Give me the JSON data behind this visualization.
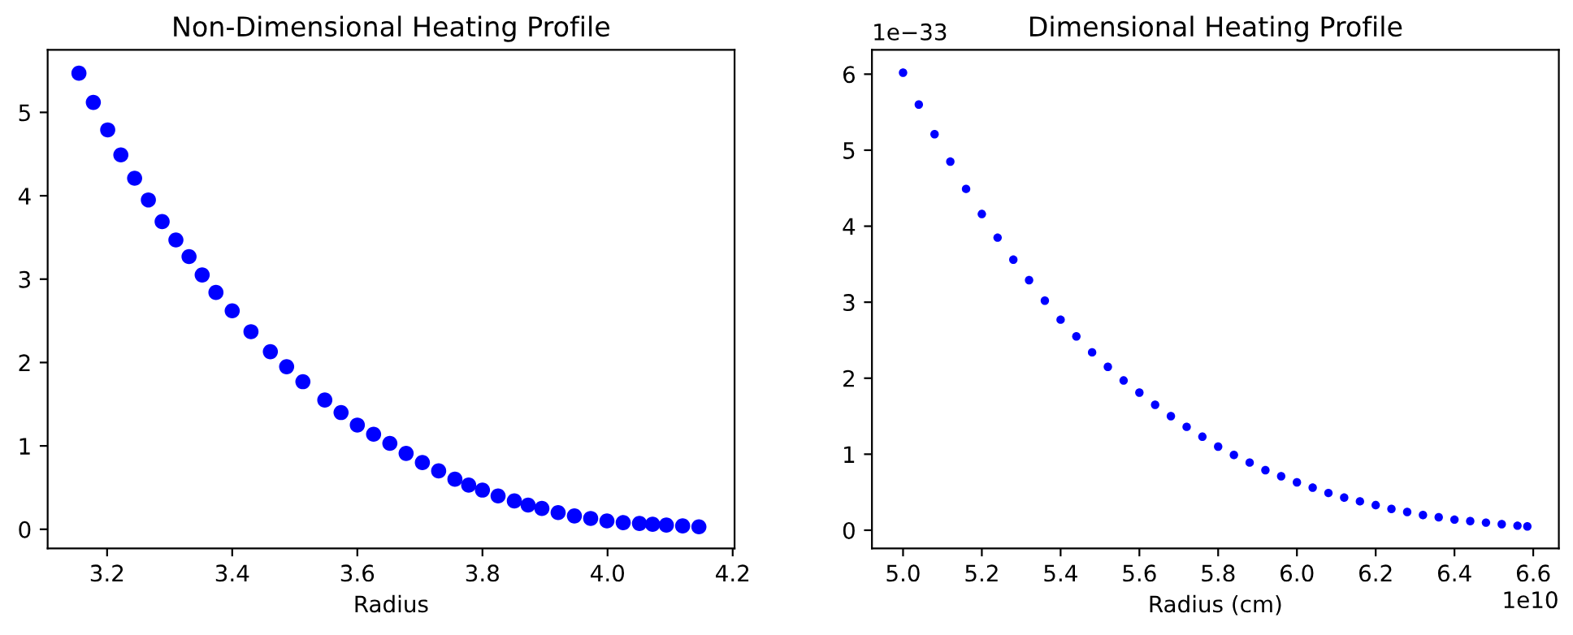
{
  "chart_data": [
    {
      "type": "scatter",
      "title": "Non-Dimensional Heating Profile",
      "xlabel": "Radius",
      "x": [
        3.155,
        3.178,
        3.201,
        3.222,
        3.244,
        3.266,
        3.288,
        3.31,
        3.331,
        3.352,
        3.374,
        3.4,
        3.43,
        3.461,
        3.487,
        3.513,
        3.548,
        3.574,
        3.6,
        3.626,
        3.652,
        3.678,
        3.704,
        3.73,
        3.756,
        3.778,
        3.8,
        3.825,
        3.851,
        3.873,
        3.895,
        3.921,
        3.947,
        3.973,
        3.999,
        4.025,
        4.051,
        4.072,
        4.094,
        4.12,
        4.146
      ],
      "series": [
        {
          "color": "#0000ff",
          "values": [
            5.47,
            5.12,
            4.79,
            4.49,
            4.21,
            3.95,
            3.69,
            3.47,
            3.27,
            3.05,
            2.84,
            2.62,
            2.37,
            2.13,
            1.95,
            1.77,
            1.55,
            1.4,
            1.25,
            1.14,
            1.03,
            0.91,
            0.8,
            0.7,
            0.6,
            0.53,
            0.47,
            0.4,
            0.34,
            0.29,
            0.25,
            0.2,
            0.16,
            0.13,
            0.1,
            0.08,
            0.07,
            0.06,
            0.05,
            0.04,
            0.03
          ]
        }
      ],
      "xlim": [
        3.105,
        4.203
      ],
      "ylim": [
        -0.23,
        5.75
      ],
      "xticks": [
        3.2,
        3.4,
        3.6,
        3.8,
        {
          "value": 4.0,
          "label": "4.0"
        },
        4.2
      ],
      "yticks": [
        0,
        1,
        2,
        3,
        4,
        5
      ],
      "marker": "circle"
    },
    {
      "type": "scatter",
      "title": "Dimensional Heating Profile",
      "xlabel": "Radius (cm)",
      "annotations": [
        "1e−33",
        "1e10"
      ],
      "x": [
        5.0,
        5.04,
        5.08,
        5.12,
        5.16,
        5.2,
        5.24,
        5.28,
        5.32,
        5.36,
        5.4,
        5.44,
        5.48,
        5.52,
        5.56,
        5.6,
        5.64,
        5.68,
        5.72,
        5.76,
        5.8,
        5.84,
        5.88,
        5.92,
        5.96,
        6.0,
        6.04,
        6.08,
        6.12,
        6.16,
        6.2,
        6.24,
        6.28,
        6.32,
        6.36,
        6.4,
        6.44,
        6.48,
        6.52,
        6.56,
        6.585
      ],
      "series": [
        {
          "color": "#0000ff",
          "values": [
            6.02,
            5.6,
            5.21,
            4.85,
            4.49,
            4.16,
            3.85,
            3.56,
            3.29,
            3.02,
            2.77,
            2.55,
            2.34,
            2.15,
            1.97,
            1.81,
            1.65,
            1.5,
            1.36,
            1.23,
            1.1,
            0.99,
            0.89,
            0.79,
            0.71,
            0.63,
            0.56,
            0.49,
            0.43,
            0.38,
            0.33,
            0.28,
            0.24,
            0.2,
            0.17,
            0.14,
            0.12,
            0.1,
            0.08,
            0.06,
            0.05
          ]
        }
      ],
      "xlim": [
        4.921,
        6.665
      ],
      "ylim": [
        -0.24,
        6.32
      ],
      "xticks": [
        {
          "value": 5.0,
          "label": "5.0"
        },
        5.2,
        5.4,
        5.6,
        5.8,
        {
          "value": 6.0,
          "label": "6.0"
        },
        6.2,
        6.4,
        6.6
      ],
      "yticks": [
        0,
        1,
        2,
        3,
        4,
        5,
        6
      ],
      "marker": "circle"
    }
  ]
}
